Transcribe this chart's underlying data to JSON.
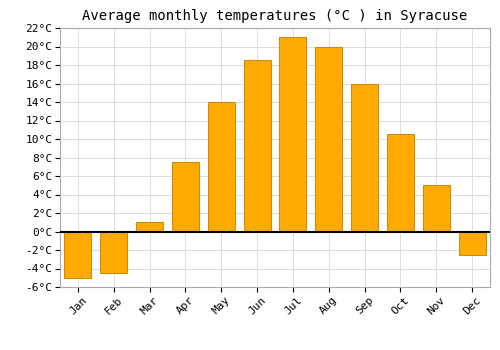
{
  "title": "Average monthly temperatures (°C ) in Syracuse",
  "months": [
    "Jan",
    "Feb",
    "Mar",
    "Apr",
    "May",
    "Jun",
    "Jul",
    "Aug",
    "Sep",
    "Oct",
    "Nov",
    "Dec"
  ],
  "values": [
    -5.0,
    -4.5,
    1.0,
    7.5,
    14.0,
    18.5,
    21.0,
    20.0,
    16.0,
    10.5,
    5.0,
    -2.5
  ],
  "bar_color": "#FFAA00",
  "bar_edge_color": "#CC8800",
  "background_color": "#ffffff",
  "ylim": [
    -6,
    22
  ],
  "yticks": [
    -6,
    -4,
    -2,
    0,
    2,
    4,
    6,
    8,
    10,
    12,
    14,
    16,
    18,
    20,
    22
  ],
  "grid_color": "#dddddd",
  "title_fontsize": 10,
  "tick_fontsize": 8,
  "font_family": "monospace",
  "bar_width": 0.75
}
